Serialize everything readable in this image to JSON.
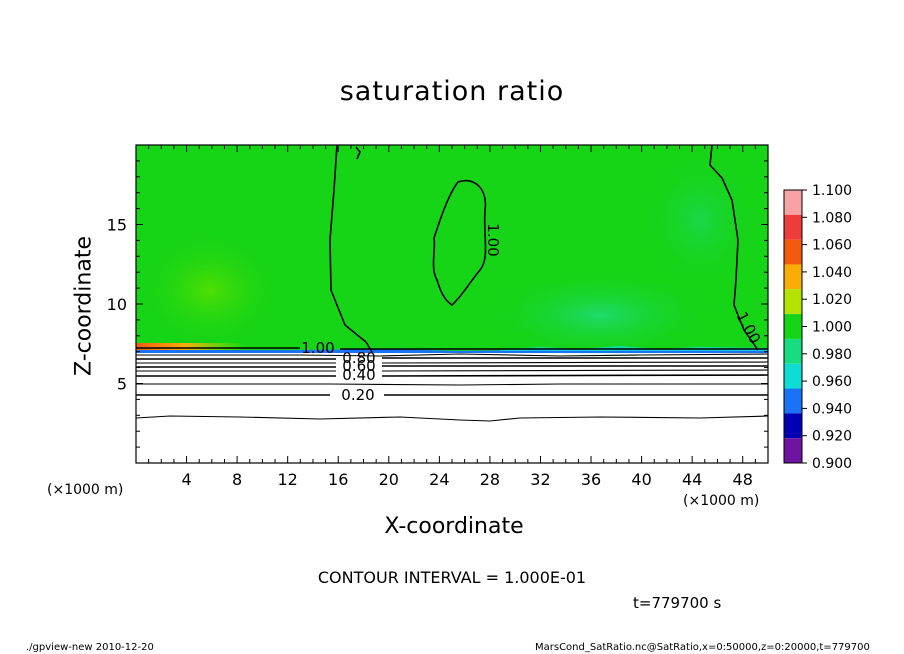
{
  "chart_data": {
    "type": "heatmap",
    "title": "saturation ratio",
    "xlabel": "X-coordinate",
    "ylabel": "Z-coordinate",
    "x_unit": "(×1000 m)",
    "xlim": [
      0,
      50
    ],
    "ylim": [
      0,
      20
    ],
    "xticks": [
      "4",
      "8",
      "12",
      "16",
      "20",
      "24",
      "28",
      "32",
      "36",
      "40",
      "44",
      "48"
    ],
    "yticks": [
      "5",
      "10",
      "15"
    ],
    "colorbar": {
      "labels": [
        "1.100",
        "1.080",
        "1.060",
        "1.040",
        "1.020",
        "1.000",
        "0.980",
        "0.960",
        "0.940",
        "0.920",
        "0.900"
      ],
      "colors": [
        "#f7a3a6",
        "#ee3b3c",
        "#f25a10",
        "#f9ae07",
        "#b3e400",
        "#16d416",
        "#18dd80",
        "#0fdcd5",
        "#1a73f7",
        "#0000b4",
        "#6e14a0"
      ]
    },
    "contour_labels": [
      "1.00",
      "0.80",
      "0.60",
      "0.40",
      "0.20",
      "1.00",
      "1.00"
    ],
    "contour_interval": "CONTOUR INTERVAL = 1.000E-01"
  },
  "footer": {
    "time": "t=779700 s",
    "left": "./gpview-new   2010-12-20",
    "right": "MarsCond_SatRatio.nc@SatRatio,x=0:50000,z=0:20000,t=779700"
  }
}
